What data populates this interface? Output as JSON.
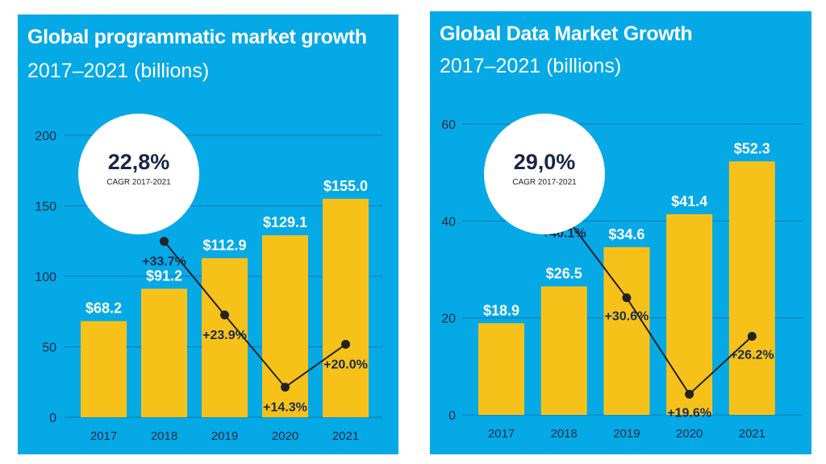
{
  "chart_data": [
    {
      "type": "bar",
      "title": "Global programmatic market growth",
      "subtitle": "2017–2021 (billions)",
      "categories": [
        "2017",
        "2018",
        "2019",
        "2020",
        "2021"
      ],
      "values": [
        68.2,
        91.2,
        112.9,
        129.1,
        155.0
      ],
      "value_labels": [
        "$68.2",
        "$91.2",
        "$112.9",
        "$129.1",
        "$155.0"
      ],
      "ylim": [
        0,
        200
      ],
      "yticks": [
        0,
        50,
        100,
        150,
        200
      ],
      "growth": {
        "type": "line",
        "categories": [
          "2018",
          "2019",
          "2020",
          "2021"
        ],
        "values": [
          33.7,
          23.9,
          14.3,
          20.0
        ],
        "labels": [
          "+33.7%",
          "+23.9%",
          "+14.3%",
          "+20.0%"
        ]
      },
      "cagr": {
        "value": "22,8%",
        "label": "CAGR 2017-2021"
      },
      "grid": true,
      "colors": {
        "background": "#04a9e6",
        "bar": "#f6c21a",
        "line": "#222222"
      }
    },
    {
      "type": "bar",
      "title": "Global Data Market Growth",
      "subtitle": "2017–2021 (billions)",
      "categories": [
        "2017",
        "2018",
        "2019",
        "2020",
        "2021"
      ],
      "values": [
        18.9,
        26.5,
        34.6,
        41.4,
        52.3
      ],
      "value_labels": [
        "$18.9",
        "$26.5",
        "$34.6",
        "$41.4",
        "$52.3"
      ],
      "ylim": [
        0,
        60
      ],
      "yticks": [
        0,
        20,
        40,
        60
      ],
      "growth": {
        "type": "line",
        "categories": [
          "2018",
          "2019",
          "2020",
          "2021"
        ],
        "values": [
          40.1,
          30.6,
          19.6,
          26.2
        ],
        "labels": [
          "+40.1%",
          "+30.6%",
          "+19.6%",
          "+26.2%"
        ]
      },
      "cagr": {
        "value": "29,0%",
        "label": "CAGR 2017-2021"
      },
      "grid": true,
      "colors": {
        "background": "#04a9e6",
        "bar": "#f6c21a",
        "line": "#222222"
      }
    }
  ]
}
